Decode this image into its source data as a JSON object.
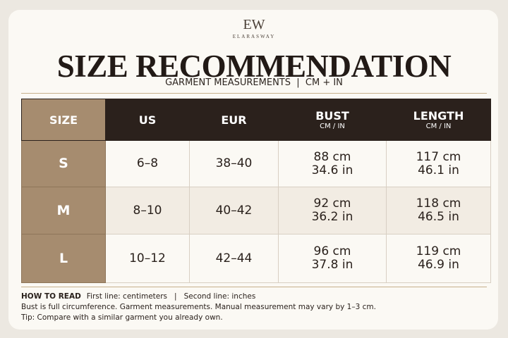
{
  "brand": {
    "monogram": "EW",
    "name": "ELARASWAY"
  },
  "header": {
    "title": "SIZE RECOMMENDATION",
    "subtitle": "GARMENT MEASUREMENTS  |  CM + IN"
  },
  "table": {
    "columns": [
      {
        "label": "SIZE"
      },
      {
        "label": "US"
      },
      {
        "label": "EUR"
      },
      {
        "label": "BUST",
        "unit": "CM / IN"
      },
      {
        "label": "LENGTH",
        "unit": "CM / IN"
      }
    ],
    "rows": [
      [
        "S",
        "6–8",
        "38–40",
        [
          "88 cm",
          "34.6 in"
        ],
        [
          "117 cm",
          "46.1 in"
        ]
      ],
      [
        "M",
        "8–10",
        "40–42",
        [
          "92 cm",
          "36.2 in"
        ],
        [
          "118 cm",
          "46.5 in"
        ]
      ],
      [
        "L",
        "10–12",
        "42–44",
        [
          "96 cm",
          "37.8 in"
        ],
        [
          "119 cm",
          "46.9 in"
        ]
      ]
    ]
  },
  "notes": {
    "heading": "HOW TO READ",
    "first": "First line: centimeters",
    "separator": "|",
    "second": "Second line: inches",
    "lines": [
      "Bust is full circumference. Garment measurements. Manual measurement may vary by 1–3 cm.",
      "Tip: Compare with a similar garment you already own."
    ]
  }
}
